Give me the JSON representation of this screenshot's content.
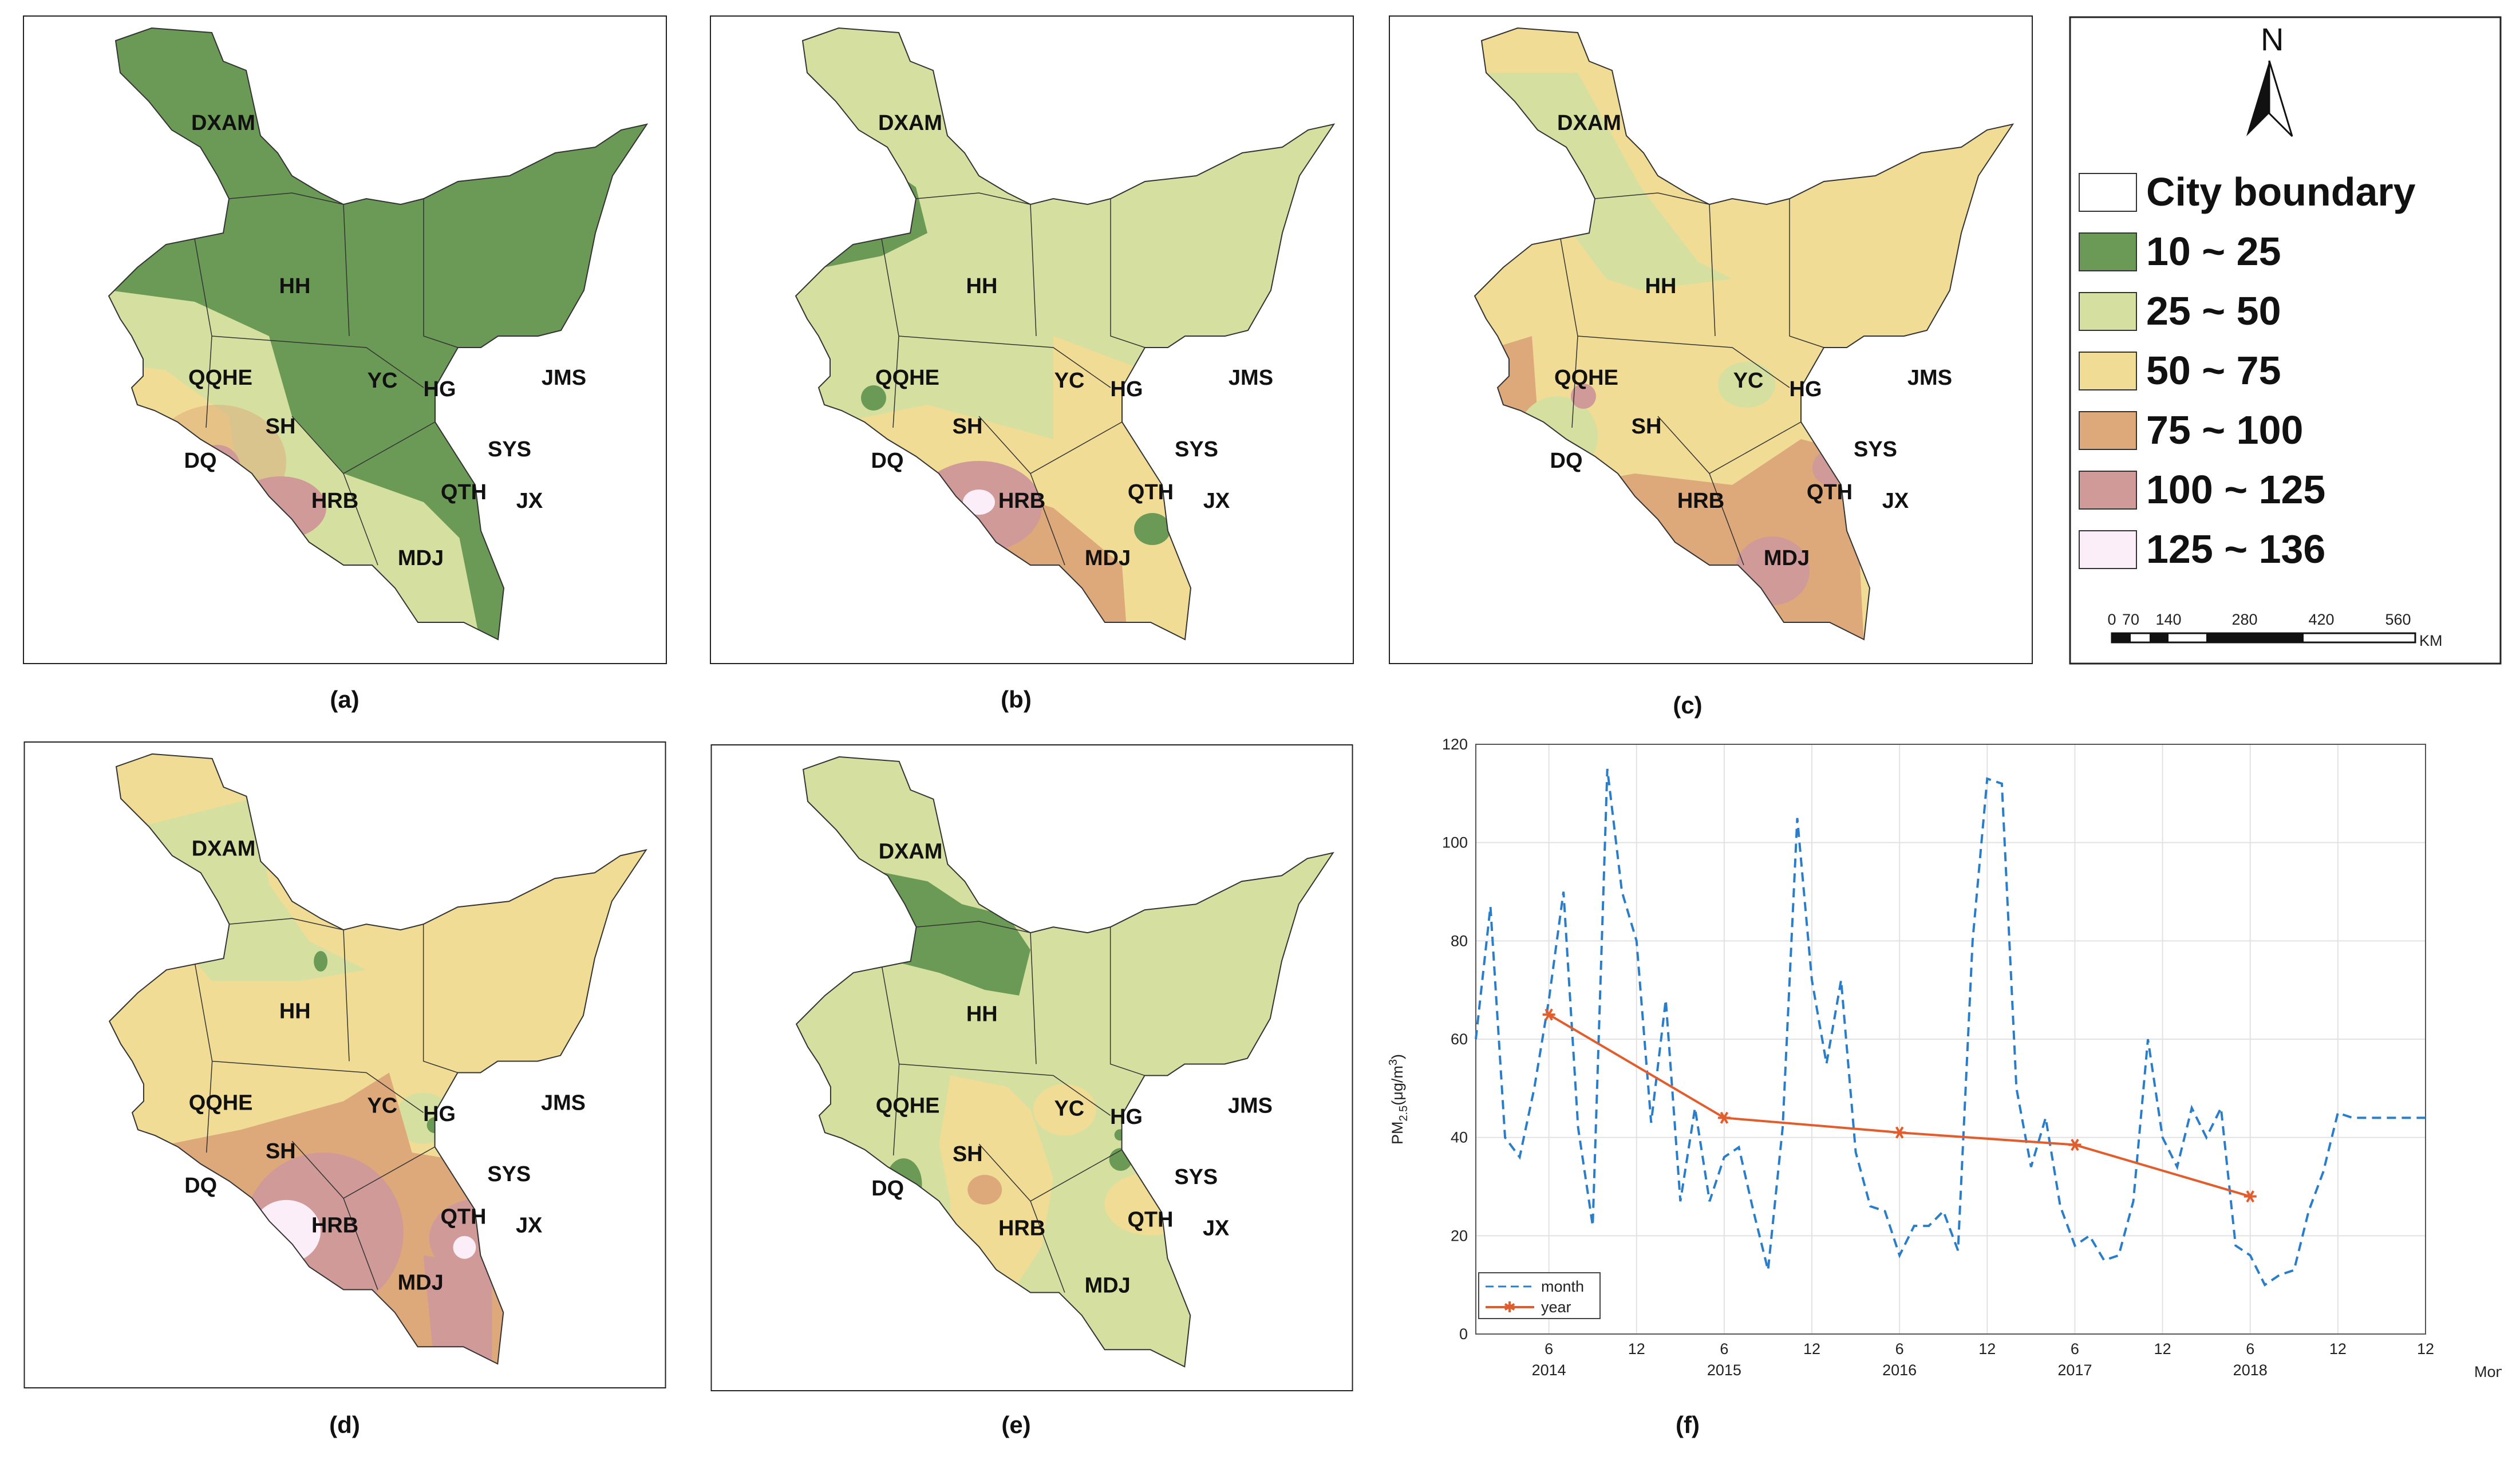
{
  "captions": [
    "(a)",
    "(b)",
    "(c)",
    "(d)",
    "(e)",
    "(f)"
  ],
  "cities": {
    "dxam": "DXAM",
    "hh": "HH",
    "qqhe": "QQHE",
    "yc": "YC",
    "hg": "HG",
    "jms": "JMS",
    "sh": "SH",
    "dq": "DQ",
    "sys": "SYS",
    "qth": "QTH",
    "jx": "JX",
    "hrb": "HRB",
    "mdj": "MDJ"
  },
  "legend": {
    "north": "N",
    "classes": [
      {
        "label": "City boundary",
        "color": "#ffffff"
      },
      {
        "label": "10 ~ 25",
        "color": "#6a9a55"
      },
      {
        "label": "25 ~ 50",
        "color": "#d5e0a0"
      },
      {
        "label": "50 ~ 75",
        "color": "#f0dc95"
      },
      {
        "label": "75 ~ 100",
        "color": "#dda87a"
      },
      {
        "label": "100 ~ 125",
        "color": "#cf9a98"
      },
      {
        "label": "125 ~ 136",
        "color": "#fbeef8"
      }
    ],
    "scale_ticks": [
      "0",
      "70",
      "140",
      "280",
      "420",
      "560"
    ],
    "scale_unit": "KM"
  },
  "chart_data": {
    "type": "line",
    "title": "",
    "ylabel_main": "PM",
    "ylabel_sub": "2.5",
    "ylabel_unit": "(μg/m",
    "ylabel_sup": "3",
    "ylabel_close": ")",
    "xlabel": "Month",
    "ylim": [
      0,
      120
    ],
    "xlim": [
      1,
      66
    ],
    "yticks": [
      "0",
      "20",
      "40",
      "60",
      "80",
      "100",
      "120"
    ],
    "xtick_positions": [
      6,
      12,
      18,
      24,
      30,
      36,
      42,
      48,
      54,
      60,
      66
    ],
    "xtick_labels": [
      "6",
      "12",
      "6",
      "12",
      "6",
      "12",
      "6",
      "12",
      "6",
      "12",
      "12"
    ],
    "year_positions": [
      6,
      18,
      30,
      42,
      54
    ],
    "year_labels": [
      "2014",
      "2015",
      "2016",
      "2017",
      "2018"
    ],
    "series": [
      {
        "name": "month",
        "style": "dashed",
        "color": "#2a7ec9",
        "x": [
          1,
          2,
          3,
          4,
          5,
          6,
          7,
          8,
          9,
          10,
          11,
          12,
          13,
          14,
          15,
          16,
          17,
          18,
          19,
          20,
          21,
          22,
          23,
          24,
          25,
          26,
          27,
          28,
          29,
          30,
          31,
          32,
          33,
          34,
          35,
          36,
          37,
          38,
          39,
          40,
          41,
          42,
          43,
          44,
          45,
          46,
          47,
          48,
          49,
          50,
          51,
          52,
          53,
          54,
          55,
          56,
          57,
          58,
          59,
          60,
          61,
          62,
          63,
          64,
          65,
          66
        ],
        "values": [
          60,
          87,
          40,
          36,
          50,
          68,
          90,
          42,
          22,
          115,
          90,
          80,
          43,
          68,
          27,
          46,
          27,
          36,
          38,
          25,
          13,
          42,
          105,
          72,
          55,
          72,
          37,
          26,
          25,
          16,
          22,
          22,
          25,
          17,
          80,
          113,
          112,
          50,
          34,
          44,
          26,
          18,
          20,
          15,
          16,
          27,
          60,
          40,
          34,
          46,
          40,
          46,
          18,
          16,
          10,
          12,
          13,
          25,
          33,
          45,
          44,
          44,
          44,
          44,
          44,
          44
        ]
      },
      {
        "name": "year",
        "style": "solid-star",
        "color": "#e35c2b",
        "x": [
          6,
          18,
          30,
          42,
          54
        ],
        "values": [
          65,
          44,
          41,
          38.5,
          28
        ]
      }
    ],
    "legend_position": "bottom-left"
  }
}
